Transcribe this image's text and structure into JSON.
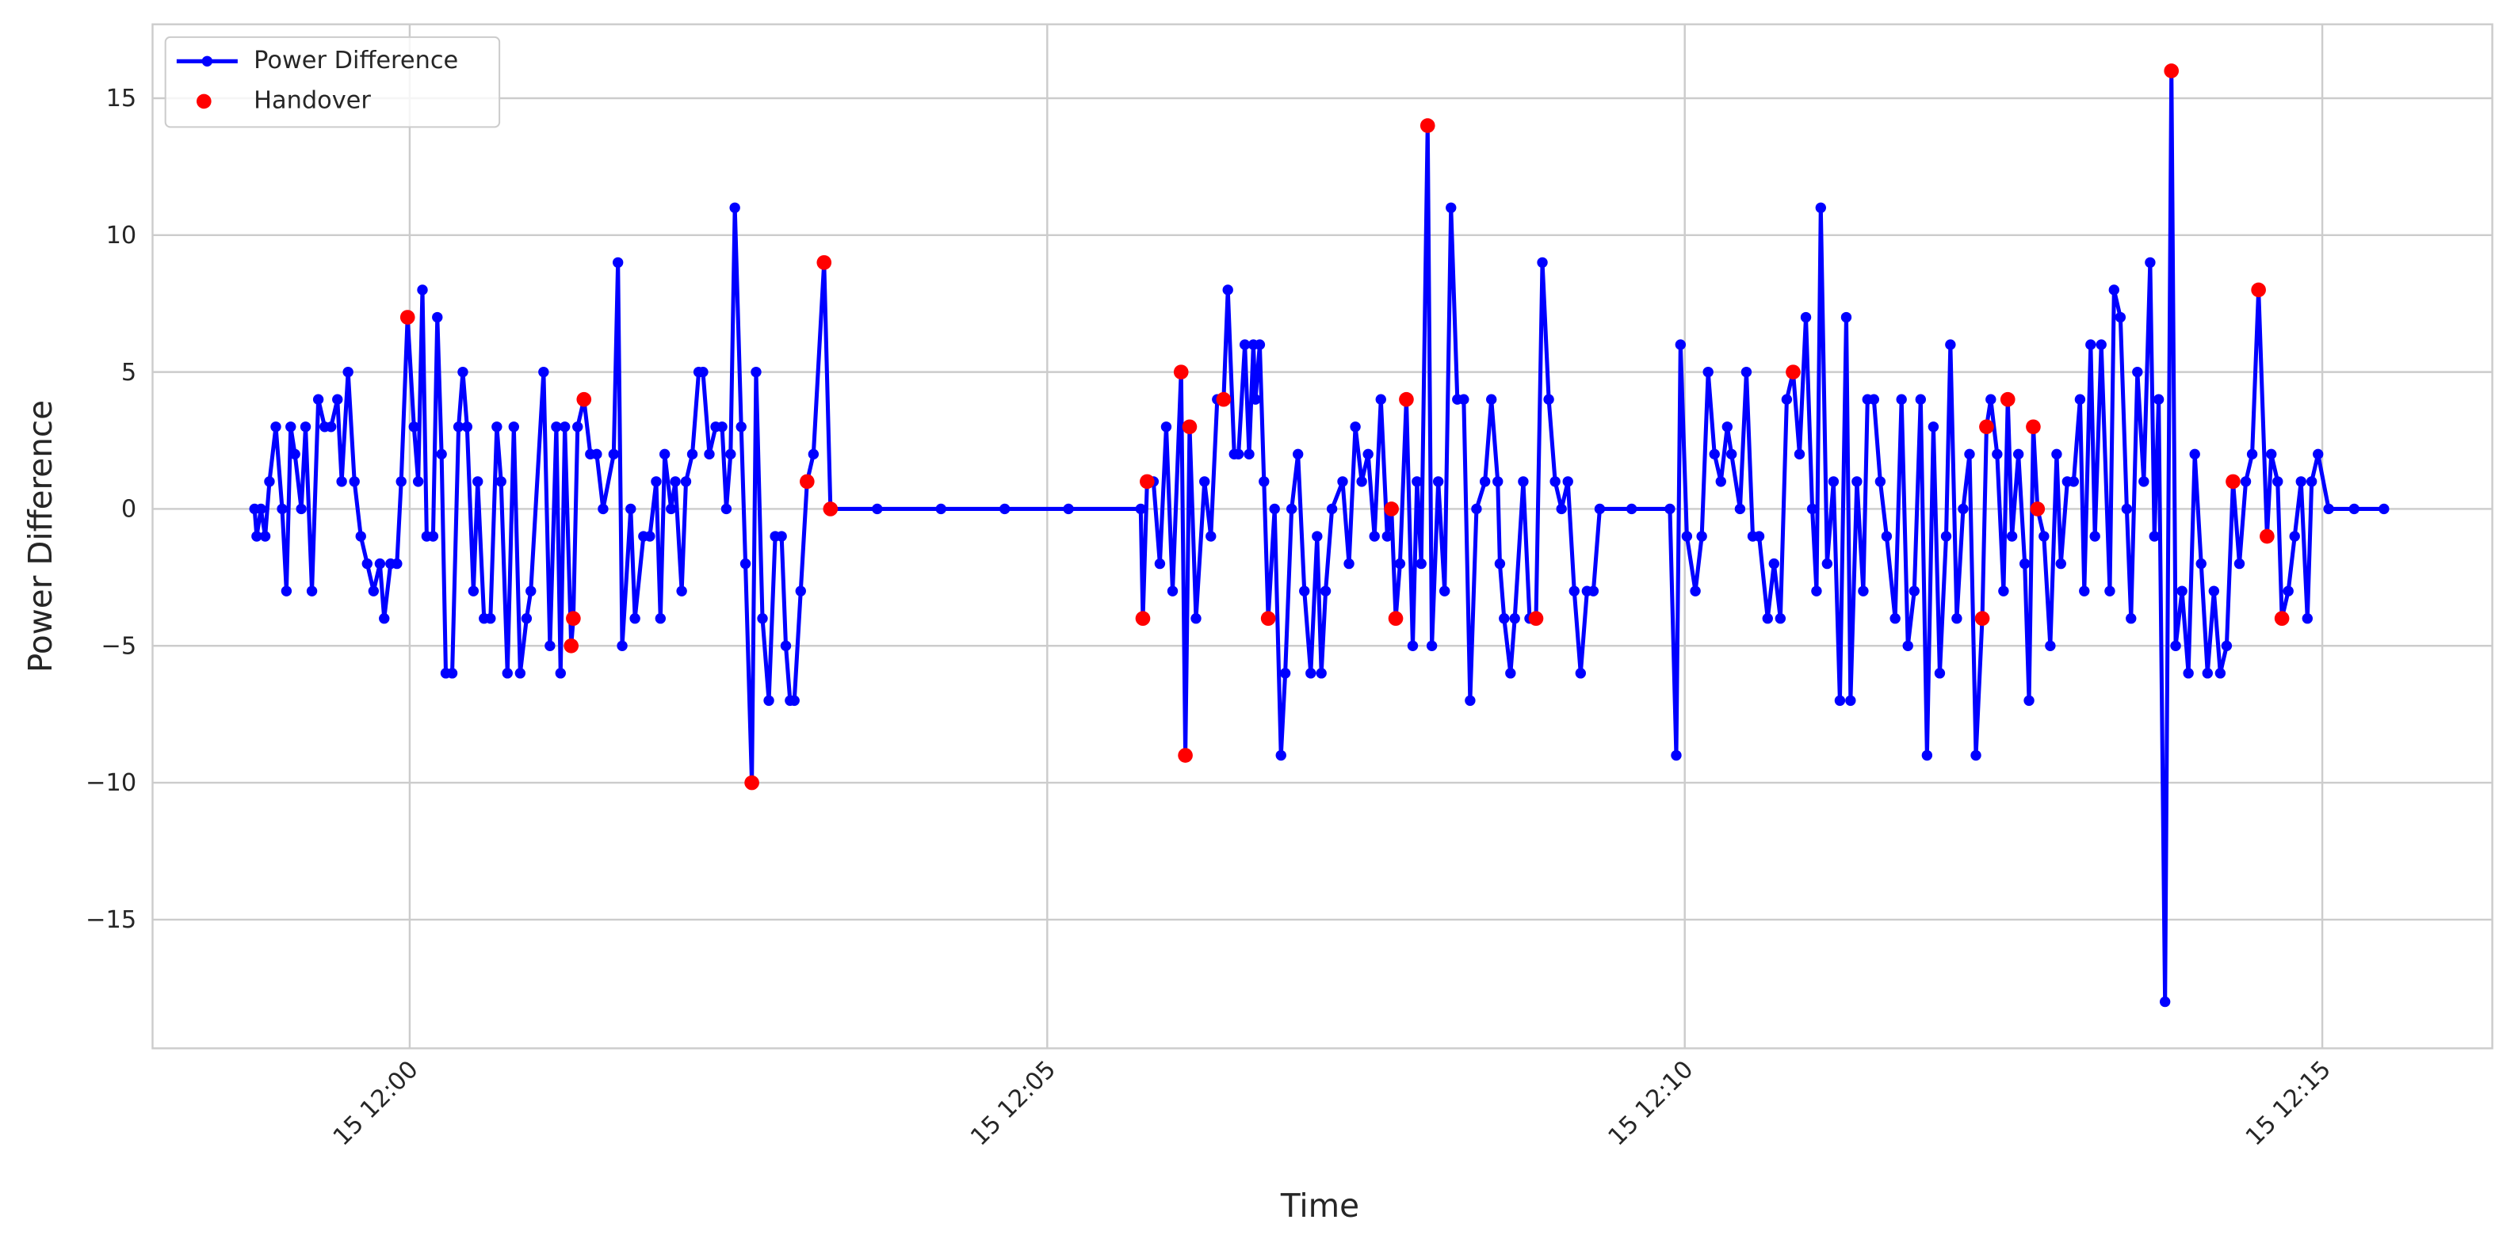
{
  "chart_data": {
    "type": "line",
    "x_label": "Time",
    "y_label": "Power Difference",
    "grid": true,
    "legend": "upper left",
    "xlim": [
      "11:57:59",
      "12:16:20"
    ],
    "xticks": [
      {
        "value": "12:00:00",
        "label": "15 12:00"
      },
      {
        "value": "12:05:00",
        "label": "15 12:05"
      },
      {
        "value": "12:10:00",
        "label": "15 12:10"
      },
      {
        "value": "12:15:00",
        "label": "15 12:15"
      }
    ],
    "ylim": [
      -19.7,
      17.7
    ],
    "yticks": [
      {
        "value": -15,
        "label": "−15"
      },
      {
        "value": -10,
        "label": "−10"
      },
      {
        "value": -5,
        "label": "−5"
      },
      0,
      5,
      10,
      15
    ],
    "x": [
      "11:58:47",
      "11:58:48",
      "11:58:50",
      "11:58:52",
      "11:58:54",
      "11:58:57",
      "11:59:00",
      "11:59:02",
      "11:59:04",
      "11:59:06",
      "11:59:09",
      "11:59:11",
      "11:59:14",
      "11:59:17",
      "11:59:20",
      "11:59:23",
      "11:59:26",
      "11:59:28",
      "11:59:31",
      "11:59:34",
      "11:59:37",
      "11:59:40",
      "11:59:43",
      "11:59:46",
      "11:59:48",
      "11:59:51",
      "11:59:54",
      "11:59:56",
      "11:59:59",
      "12:00:02",
      "12:00:04",
      "12:00:06",
      "12:00:08",
      "12:00:11",
      "12:00:13",
      "12:00:15",
      "12:00:17",
      "12:00:20",
      "12:00:23",
      "12:00:25",
      "12:00:27",
      "12:00:30",
      "12:00:32",
      "12:00:35",
      "12:00:38",
      "12:00:41",
      "12:00:43",
      "12:00:46",
      "12:00:49",
      "12:00:52",
      "12:00:55",
      "12:00:57",
      "12:01:03",
      "12:01:06",
      "12:01:09",
      "12:01:11",
      "12:01:13",
      "12:01:16",
      "12:01:17",
      "12:01:19",
      "12:01:22",
      "12:01:25",
      "12:01:28",
      "12:01:31",
      "12:01:36",
      "12:01:38",
      "12:01:40",
      "12:01:44",
      "12:01:46",
      "12:01:50",
      "12:01:53",
      "12:01:56",
      "12:01:58",
      "12:02:00",
      "12:02:03",
      "12:02:05",
      "12:02:08",
      "12:02:10",
      "12:02:13",
      "12:02:16",
      "12:02:18",
      "12:02:21",
      "12:02:24",
      "12:02:27",
      "12:02:29",
      "12:02:31",
      "12:02:33",
      "12:02:36",
      "12:02:38",
      "12:02:41",
      "12:02:43",
      "12:02:46",
      "12:02:49",
      "12:02:52",
      "12:02:55",
      "12:02:57",
      "12:02:59",
      "12:03:01",
      "12:03:04",
      "12:03:07",
      "12:03:10",
      "12:03:15",
      "12:03:18",
      "12:03:40",
      "12:04:10",
      "12:04:40",
      "12:05:10",
      "12:05:44",
      "12:05:45",
      "12:05:47",
      "12:05:50",
      "12:05:53",
      "12:05:56",
      "12:05:59",
      "12:06:03",
      "12:06:05",
      "12:06:07",
      "12:06:10",
      "12:06:14",
      "12:06:17",
      "12:06:20",
      "12:06:23",
      "12:06:25",
      "12:06:28",
      "12:06:30",
      "12:06:33",
      "12:06:35",
      "12:06:37",
      "12:06:38",
      "12:06:40",
      "12:06:42",
      "12:06:44",
      "12:06:47",
      "12:06:50",
      "12:06:52",
      "12:06:55",
      "12:06:58",
      "12:07:01",
      "12:07:04",
      "12:07:07",
      "12:07:09",
      "12:07:11",
      "12:07:14",
      "12:07:19",
      "12:07:22",
      "12:07:25",
      "12:07:28",
      "12:07:31",
      "12:07:34",
      "12:07:37",
      "12:07:40",
      "12:07:42",
      "12:07:44",
      "12:07:46",
      "12:07:49",
      "12:07:52",
      "12:07:54",
      "12:07:56",
      "12:07:59",
      "12:08:01",
      "12:08:04",
      "12:08:07",
      "12:08:10",
      "12:08:13",
      "12:08:16",
      "12:08:19",
      "12:08:22",
      "12:08:26",
      "12:08:29",
      "12:08:32",
      "12:08:33",
      "12:08:35",
      "12:08:38",
      "12:08:40",
      "12:08:44",
      "12:08:47",
      "12:08:50",
      "12:08:53",
      "12:08:56",
      "12:08:59",
      "12:09:02",
      "12:09:05",
      "12:09:08",
      "12:09:11",
      "12:09:14",
      "12:09:17",
      "12:09:20",
      "12:09:35",
      "12:09:53",
      "12:09:56",
      "12:09:58",
      "12:10:01",
      "12:10:05",
      "12:10:08",
      "12:10:11",
      "12:10:14",
      "12:10:17",
      "12:10:20",
      "12:10:22",
      "12:10:26",
      "12:10:29",
      "12:10:32",
      "12:10:35",
      "12:10:39",
      "12:10:42",
      "12:10:45",
      "12:10:48",
      "12:10:51",
      "12:10:54",
      "12:10:57",
      "12:11:00",
      "12:11:02",
      "12:11:04",
      "12:11:07",
      "12:11:10",
      "12:11:13",
      "12:11:16",
      "12:11:18",
      "12:11:21",
      "12:11:24",
      "12:11:26",
      "12:11:29",
      "12:11:32",
      "12:11:35",
      "12:11:39",
      "12:11:42",
      "12:11:45",
      "12:11:48",
      "12:11:51",
      "12:11:54",
      "12:11:57",
      "12:12:00",
      "12:12:03",
      "12:12:05",
      "12:12:08",
      "12:12:11",
      "12:12:14",
      "12:12:17",
      "12:12:20",
      "12:12:22",
      "12:12:24",
      "12:12:27",
      "12:12:30",
      "12:12:32",
      "12:12:34",
      "12:12:37",
      "12:12:40",
      "12:12:42",
      "12:12:44",
      "12:12:46",
      "12:12:49",
      "12:12:52",
      "12:12:55",
      "12:12:57",
      "12:13:00",
      "12:13:03",
      "12:13:06",
      "12:13:08",
      "12:13:11",
      "12:13:13",
      "12:13:16",
      "12:13:20",
      "12:13:22",
      "12:13:25",
      "12:13:28",
      "12:13:30",
      "12:13:33",
      "12:13:36",
      "12:13:39",
      "12:13:41",
      "12:13:43",
      "12:13:46",
      "12:13:49",
      "12:13:51",
      "12:13:54",
      "12:13:57",
      "12:14:00",
      "12:14:03",
      "12:14:06",
      "12:14:09",
      "12:14:12",
      "12:14:15",
      "12:14:18",
      "12:14:21",
      "12:14:24",
      "12:14:27",
      "12:14:30",
      "12:14:34",
      "12:14:36",
      "12:14:39",
      "12:14:41",
      "12:14:44",
      "12:14:47",
      "12:14:50",
      "12:14:53",
      "12:14:55",
      "12:14:58",
      "12:15:03",
      "12:15:15",
      "12:15:29"
    ],
    "series": [
      {
        "name": "Power Difference",
        "color": "#0000ff",
        "marker": true,
        "values": [
          0,
          -1,
          0,
          -1,
          1,
          3,
          0,
          -3,
          3,
          2,
          0,
          3,
          -3,
          4,
          3,
          3,
          4,
          1,
          5,
          1,
          -1,
          -2,
          -3,
          -2,
          -4,
          -2,
          -2,
          1,
          7,
          3,
          1,
          8,
          -1,
          -1,
          7,
          2,
          -6,
          -6,
          3,
          5,
          3,
          -3,
          1,
          -4,
          -4,
          3,
          1,
          -6,
          3,
          -6,
          -4,
          -3,
          5,
          -5,
          3,
          -6,
          3,
          -5,
          -4,
          3,
          4,
          2,
          2,
          0,
          2,
          9,
          -5,
          0,
          -4,
          -1,
          -1,
          1,
          -4,
          2,
          0,
          1,
          -3,
          1,
          2,
          5,
          5,
          2,
          3,
          3,
          0,
          2,
          11,
          3,
          -2,
          -10,
          5,
          -4,
          -7,
          -1,
          -1,
          -5,
          -7,
          -7,
          -3,
          1,
          2,
          9,
          0,
          0,
          0,
          0,
          0,
          0,
          -4,
          1,
          1,
          -2,
          3,
          -3,
          5,
          -9,
          3,
          -4,
          1,
          -1,
          4,
          4,
          8,
          2,
          2,
          6,
          2,
          6,
          4,
          6,
          1,
          -4,
          0,
          -9,
          -6,
          0,
          2,
          -3,
          -6,
          -1,
          -6,
          -3,
          0,
          1,
          -2,
          3,
          1,
          2,
          -1,
          4,
          -1,
          0,
          -4,
          -2,
          4,
          -5,
          1,
          -2,
          14,
          -5,
          1,
          -3,
          11,
          4,
          4,
          -7,
          0,
          1,
          4,
          1,
          -2,
          -4,
          -6,
          -4,
          1,
          -4,
          -4,
          9,
          4,
          1,
          0,
          1,
          -3,
          -6,
          -3,
          -3,
          0,
          0,
          0,
          -9,
          6,
          -1,
          -3,
          -1,
          5,
          2,
          1,
          3,
          2,
          0,
          5,
          -1,
          -1,
          -4,
          -2,
          -4,
          4,
          5,
          2,
          7,
          0,
          -3,
          11,
          -2,
          1,
          -7,
          7,
          -7,
          1,
          -3,
          4,
          4,
          1,
          -1,
          -4,
          4,
          -5,
          -3,
          4,
          -9,
          3,
          -6,
          -1,
          6,
          -4,
          0,
          2,
          -9,
          -4,
          3,
          4,
          2,
          -3,
          4,
          -1,
          2,
          -2,
          -7,
          3,
          0,
          -1,
          -5,
          2,
          -2,
          1,
          1,
          4,
          -3,
          6,
          -1,
          6,
          -3,
          8,
          7,
          0,
          -4,
          5,
          1,
          9,
          -1,
          4,
          -18,
          16,
          -5,
          -3,
          -6,
          2,
          -2,
          -6,
          -3,
          -6,
          -5,
          1,
          -2,
          1,
          2,
          8,
          -1,
          2,
          1,
          -4,
          -3,
          -1,
          1,
          -4,
          1,
          2,
          0,
          0,
          0
        ]
      },
      {
        "name": "Handover",
        "color": "#ff0000",
        "type": "scatter",
        "x": [
          "11:59:59",
          "12:01:16",
          "12:01:17",
          "12:01:22",
          "12:02:41",
          "12:03:07",
          "12:03:15",
          "12:03:18",
          "12:05:45",
          "12:05:47",
          "12:06:03",
          "12:06:05",
          "12:06:07",
          "12:06:23",
          "12:06:44",
          "12:07:42",
          "12:07:44",
          "12:07:49",
          "12:07:59",
          "12:08:50",
          "12:10:51",
          "12:12:20",
          "12:12:22",
          "12:12:32",
          "12:12:44",
          "12:12:46",
          "12:13:49",
          "12:14:18",
          "12:14:30",
          "12:14:34",
          "12:14:41"
        ],
        "values": [
          7,
          -5,
          -4,
          4,
          -10,
          1,
          9,
          0,
          -4,
          1,
          5,
          -9,
          3,
          4,
          -4,
          0,
          -4,
          4,
          14,
          -4,
          5,
          -4,
          3,
          4,
          3,
          0,
          16,
          1,
          8,
          -1,
          -4
        ]
      }
    ]
  }
}
